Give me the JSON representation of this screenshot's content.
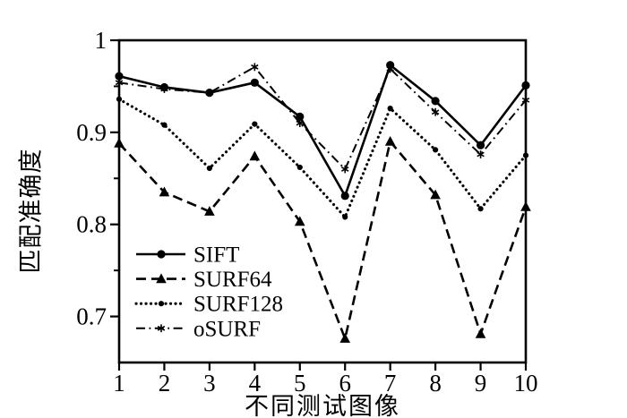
{
  "chart_data": {
    "type": "line",
    "title": "",
    "xlabel": "不同测试图像",
    "ylabel": "匹配准确度",
    "x": [
      1,
      2,
      3,
      4,
      5,
      6,
      7,
      8,
      9,
      10
    ],
    "x_tick_labels": [
      "1",
      "2",
      "3",
      "4",
      "5",
      "6",
      "7",
      "8",
      "9",
      "10"
    ],
    "xlim": [
      1,
      10
    ],
    "ylim": [
      0.65,
      1.0
    ],
    "y_major_ticks": [
      0.7,
      0.8,
      0.9,
      1
    ],
    "y_major_tick_labels": [
      "0.7",
      "0.8",
      "0.9",
      "1"
    ],
    "y_minor_ticks": [
      0.75,
      0.85,
      0.95
    ],
    "grid": false,
    "legend_position": "inside-lower-left",
    "line_color": "#000000",
    "background_color": "#ffffff",
    "series": [
      {
        "name": "SIFT",
        "line_style": "solid",
        "marker": "circle",
        "values": [
          0.961,
          0.949,
          0.943,
          0.954,
          0.917,
          0.831,
          0.973,
          0.934,
          0.886,
          0.951
        ]
      },
      {
        "name": "SURF64",
        "line_style": "dashed",
        "marker": "triangle",
        "values": [
          0.888,
          0.835,
          0.814,
          0.874,
          0.803,
          0.676,
          0.89,
          0.832,
          0.681,
          0.819
        ]
      },
      {
        "name": "SURF128",
        "line_style": "dotted",
        "marker": "dot",
        "values": [
          0.936,
          0.908,
          0.861,
          0.909,
          0.862,
          0.808,
          0.926,
          0.881,
          0.817,
          0.875
        ]
      },
      {
        "name": "oSURF",
        "line_style": "dashdot",
        "marker": "asterisk",
        "values": [
          0.954,
          0.947,
          0.943,
          0.971,
          0.91,
          0.86,
          0.969,
          0.922,
          0.876,
          0.935
        ]
      }
    ]
  }
}
